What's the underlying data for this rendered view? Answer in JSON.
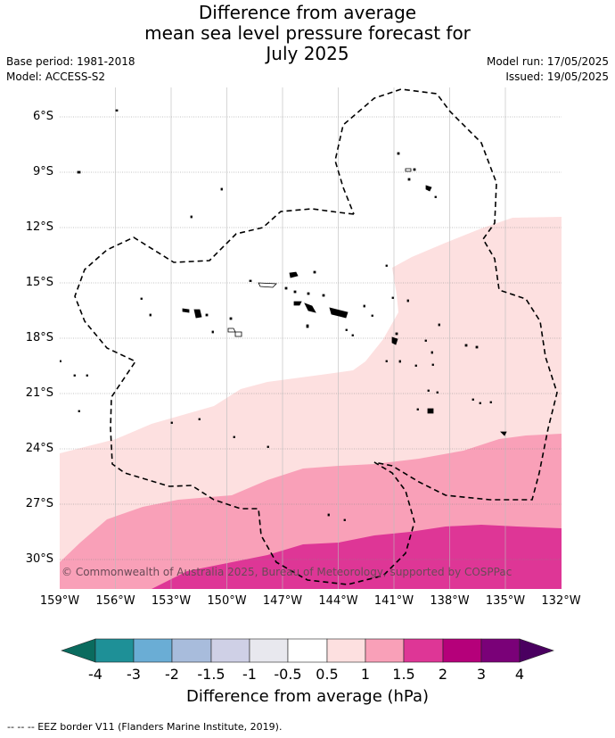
{
  "title_lines": [
    "Difference from average",
    "mean sea level pressure forecast for",
    "July 2025"
  ],
  "base_period": "Base period: 1981-2018",
  "model": "Model: ACCESS-S2",
  "model_run": "Model run: 17/05/2025",
  "issued": "Issued: 19/05/2025",
  "copyright": "© Commonwealth of Australia 2025, Bureau of Meteorology, supported by COSPPac",
  "footer": "--  --  -- EEZ border V11 (Flanders Marine Institute, 2019).",
  "colors": {
    "band_0_0.5": "#ffffff",
    "band_0.5_1": "#fde0e0",
    "band_1_1.5": "#f9a0b8",
    "band_1.5_2": "#de3696",
    "band_2_3": "#b5007a",
    "band_3_4": "#7a0178",
    "band_gt4": "#4a0060",
    "band_lt-4": "#0a6b5e",
    "band_-4_-3": "#1e9097",
    "band_-3_-2": "#6aadd5",
    "band_-2_-1.5": "#a8bcdc",
    "band_-1.5_-1": "#cfd0e6",
    "band_-1_-0.5": "#e8e8ee"
  },
  "chart_data": {
    "type": "map",
    "title": "Difference from average mean sea level pressure forecast for July 2025",
    "y_ticks": [
      "6°S",
      "9°S",
      "12°S",
      "15°S",
      "18°S",
      "21°S",
      "24°S",
      "27°S",
      "30°S"
    ],
    "x_ticks": [
      "159°W",
      "156°W",
      "153°W",
      "150°W",
      "147°W",
      "144°W",
      "141°W",
      "138°W",
      "135°W",
      "132°W"
    ],
    "lat_range": [
      -31.5,
      -4.5
    ],
    "lon_range": [
      -159,
      -132
    ],
    "grid": true,
    "colorbar": {
      "label": "Difference from average (hPa)",
      "ticks": [
        "-4",
        "-3",
        "-2",
        "-1.5",
        "-1",
        "-0.5",
        "0.5",
        "1",
        "1.5",
        "2",
        "3",
        "4"
      ]
    }
  }
}
